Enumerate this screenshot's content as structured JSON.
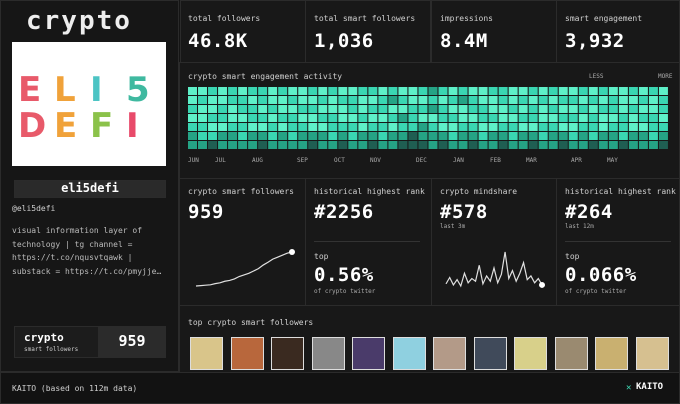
{
  "sidebar": {
    "title": "crypto",
    "logo_top": [
      "E",
      "L",
      "I",
      "5"
    ],
    "logo_bottom": [
      "D",
      "E",
      "F",
      "I"
    ],
    "name": "eli5defi",
    "handle": "@eli5defi",
    "bio_lines": [
      "visual information layer of",
      "technology | tg channel =",
      "https://t.co/nqusvtqawk |",
      "substack = https://t.co/pmyjje…"
    ],
    "badge": {
      "label": "crypto",
      "sublabel": "smart followers",
      "value": "959"
    }
  },
  "stats": [
    {
      "label": "total followers",
      "value": "46.8K"
    },
    {
      "label": "total smart followers",
      "value": "1,036"
    },
    {
      "label": "impressions",
      "value": "8.4M"
    },
    {
      "label": "smart engagement",
      "value": "3,932"
    }
  ],
  "activity": {
    "title": "crypto smart engagement activity",
    "legend_low": "LESS",
    "legend_high": "MORE",
    "months": [
      "JUN",
      "JUL",
      "AUG",
      "SEP",
      "OCT",
      "NOV",
      "DEC",
      "JAN",
      "FEB",
      "MAR",
      "APR",
      "MAY"
    ],
    "levels": [
      [
        4,
        4,
        3,
        4,
        3,
        4,
        3,
        3,
        4,
        3,
        4,
        4,
        3,
        4,
        3,
        4,
        4,
        3,
        3,
        4,
        3,
        4,
        4,
        3,
        2,
        3,
        4,
        3,
        4,
        4,
        3,
        3,
        4,
        4,
        3,
        4,
        3,
        4,
        4,
        3,
        4,
        3,
        4,
        4,
        3,
        4,
        3,
        4
      ],
      [
        4,
        3,
        4,
        4,
        3,
        3,
        4,
        3,
        4,
        4,
        3,
        4,
        4,
        3,
        4,
        3,
        3,
        4,
        4,
        3,
        2,
        3,
        4,
        4,
        3,
        4,
        3,
        2,
        3,
        4,
        4,
        3,
        4,
        3,
        4,
        3,
        4,
        3,
        3,
        4,
        3,
        4,
        3,
        4,
        4,
        3,
        4,
        3
      ],
      [
        3,
        4,
        4,
        3,
        4,
        3,
        3,
        4,
        3,
        4,
        4,
        3,
        3,
        4,
        4,
        4,
        3,
        4,
        3,
        3,
        4,
        4,
        3,
        3,
        2,
        3,
        4,
        4,
        3,
        3,
        4,
        4,
        3,
        4,
        3,
        4,
        3,
        4,
        4,
        3,
        4,
        3,
        3,
        4,
        3,
        4,
        4,
        3
      ],
      [
        4,
        4,
        3,
        3,
        4,
        4,
        3,
        3,
        4,
        3,
        3,
        4,
        4,
        3,
        3,
        4,
        4,
        3,
        4,
        4,
        3,
        2,
        3,
        4,
        4,
        3,
        3,
        4,
        4,
        3,
        3,
        4,
        4,
        3,
        3,
        4,
        4,
        3,
        3,
        4,
        3,
        4,
        4,
        3,
        4,
        3,
        3,
        4
      ],
      [
        3,
        3,
        4,
        4,
        3,
        3,
        4,
        4,
        3,
        4,
        3,
        3,
        4,
        4,
        3,
        3,
        3,
        4,
        3,
        3,
        4,
        3,
        3,
        2,
        3,
        4,
        4,
        3,
        3,
        4,
        4,
        3,
        3,
        4,
        4,
        3,
        3,
        4,
        4,
        3,
        3,
        4,
        3,
        3,
        4,
        4,
        3,
        3
      ],
      [
        2,
        3,
        3,
        2,
        2,
        3,
        2,
        2,
        3,
        2,
        3,
        2,
        2,
        2,
        3,
        2,
        3,
        2,
        2,
        3,
        2,
        2,
        1,
        2,
        2,
        2,
        3,
        2,
        2,
        3,
        2,
        2,
        3,
        2,
        2,
        3,
        2,
        2,
        3,
        2,
        3,
        2,
        2,
        3,
        2,
        2,
        3,
        2
      ],
      [
        2,
        2,
        1,
        2,
        2,
        2,
        2,
        1,
        2,
        2,
        2,
        2,
        1,
        2,
        2,
        1,
        2,
        2,
        1,
        2,
        2,
        1,
        1,
        1,
        2,
        1,
        2,
        2,
        1,
        2,
        2,
        1,
        2,
        2,
        1,
        2,
        2,
        1,
        2,
        2,
        1,
        2,
        2,
        1,
        2,
        2,
        2,
        1
      ]
    ]
  },
  "metrics": [
    {
      "title": "crypto smart followers",
      "value": "959",
      "trend": [
        2,
        3,
        4,
        5,
        8,
        10,
        14,
        16,
        20,
        26,
        30,
        34,
        40,
        46,
        55,
        62,
        70,
        75,
        80,
        85,
        88
      ]
    },
    {
      "title": "historical highest rank",
      "value": "#2256",
      "top_label": "top",
      "top_value": "0.56%",
      "top_note": "of crypto twitter"
    },
    {
      "title": "crypto mindshare",
      "value": "#578",
      "period": "last 3m",
      "trend": [
        10,
        22,
        8,
        18,
        6,
        30,
        12,
        20,
        15,
        45,
        10,
        25,
        15,
        40,
        12,
        28,
        70,
        20,
        35,
        15,
        30,
        50,
        18,
        25,
        12,
        20,
        8
      ]
    },
    {
      "title": "historical highest rank",
      "value": "#264",
      "period": "last 12m",
      "top_label": "top",
      "top_value": "0.066%",
      "top_note": "of crypto twitter"
    }
  ],
  "top_followers": {
    "title": "top crypto smart followers"
  },
  "footer": {
    "text": "KAITO (based on 112m data)",
    "brand": "KAITO"
  }
}
